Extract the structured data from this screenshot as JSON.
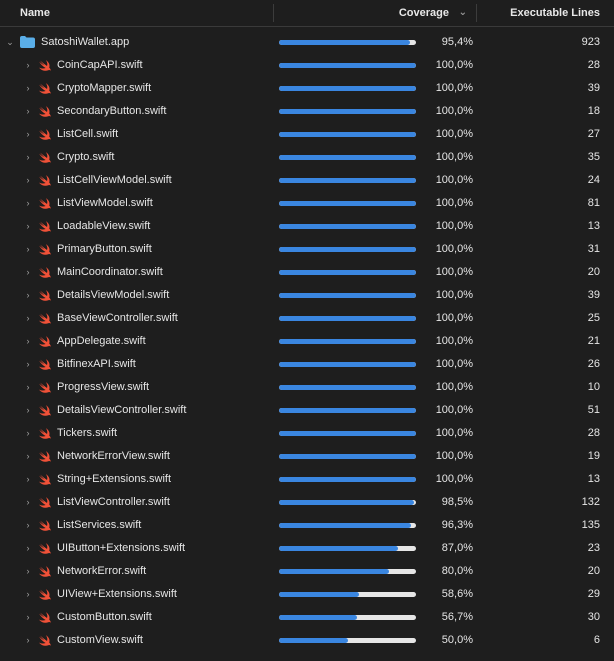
{
  "header": {
    "name_label": "Name",
    "coverage_label": "Coverage",
    "lines_label": "Executable Lines"
  },
  "colors": {
    "background": "#1e1e1e",
    "bar_fill": "#3a86e0",
    "bar_track": "#e6e6e6",
    "swift_icon": "#f05138",
    "app_icon": "#5aaee8"
  },
  "target": {
    "name": "SatoshiWallet.app",
    "coverage": "95,4%",
    "coverage_value": 0.954,
    "lines": "923",
    "icon": "folder-icon"
  },
  "files": [
    {
      "name": "CoinCapAPI.swift",
      "coverage": "100,0%",
      "coverage_value": 1.0,
      "lines": "28"
    },
    {
      "name": "CryptoMapper.swift",
      "coverage": "100,0%",
      "coverage_value": 1.0,
      "lines": "39"
    },
    {
      "name": "SecondaryButton.swift",
      "coverage": "100,0%",
      "coverage_value": 1.0,
      "lines": "18"
    },
    {
      "name": "ListCell.swift",
      "coverage": "100,0%",
      "coverage_value": 1.0,
      "lines": "27"
    },
    {
      "name": "Crypto.swift",
      "coverage": "100,0%",
      "coverage_value": 1.0,
      "lines": "35"
    },
    {
      "name": "ListCellViewModel.swift",
      "coverage": "100,0%",
      "coverage_value": 1.0,
      "lines": "24"
    },
    {
      "name": "ListViewModel.swift",
      "coverage": "100,0%",
      "coverage_value": 1.0,
      "lines": "81"
    },
    {
      "name": "LoadableView.swift",
      "coverage": "100,0%",
      "coverage_value": 1.0,
      "lines": "13"
    },
    {
      "name": "PrimaryButton.swift",
      "coverage": "100,0%",
      "coverage_value": 1.0,
      "lines": "31"
    },
    {
      "name": "MainCoordinator.swift",
      "coverage": "100,0%",
      "coverage_value": 1.0,
      "lines": "20"
    },
    {
      "name": "DetailsViewModel.swift",
      "coverage": "100,0%",
      "coverage_value": 1.0,
      "lines": "39"
    },
    {
      "name": "BaseViewController.swift",
      "coverage": "100,0%",
      "coverage_value": 1.0,
      "lines": "25"
    },
    {
      "name": "AppDelegate.swift",
      "coverage": "100,0%",
      "coverage_value": 1.0,
      "lines": "21"
    },
    {
      "name": "BitfinexAPI.swift",
      "coverage": "100,0%",
      "coverage_value": 1.0,
      "lines": "26"
    },
    {
      "name": "ProgressView.swift",
      "coverage": "100,0%",
      "coverage_value": 1.0,
      "lines": "10"
    },
    {
      "name": "DetailsViewController.swift",
      "coverage": "100,0%",
      "coverage_value": 1.0,
      "lines": "51"
    },
    {
      "name": "Tickers.swift",
      "coverage": "100,0%",
      "coverage_value": 1.0,
      "lines": "28"
    },
    {
      "name": "NetworkErrorView.swift",
      "coverage": "100,0%",
      "coverage_value": 1.0,
      "lines": "19"
    },
    {
      "name": "String+Extensions.swift",
      "coverage": "100,0%",
      "coverage_value": 1.0,
      "lines": "13"
    },
    {
      "name": "ListViewController.swift",
      "coverage": "98,5%",
      "coverage_value": 0.985,
      "lines": "132"
    },
    {
      "name": "ListServices.swift",
      "coverage": "96,3%",
      "coverage_value": 0.963,
      "lines": "135"
    },
    {
      "name": "UIButton+Extensions.swift",
      "coverage": "87,0%",
      "coverage_value": 0.87,
      "lines": "23"
    },
    {
      "name": "NetworkError.swift",
      "coverage": "80,0%",
      "coverage_value": 0.8,
      "lines": "20"
    },
    {
      "name": "UIView+Extensions.swift",
      "coverage": "58,6%",
      "coverage_value": 0.586,
      "lines": "29"
    },
    {
      "name": "CustomButton.swift",
      "coverage": "56,7%",
      "coverage_value": 0.567,
      "lines": "30"
    },
    {
      "name": "CustomView.swift",
      "coverage": "50,0%",
      "coverage_value": 0.5,
      "lines": "6"
    }
  ]
}
